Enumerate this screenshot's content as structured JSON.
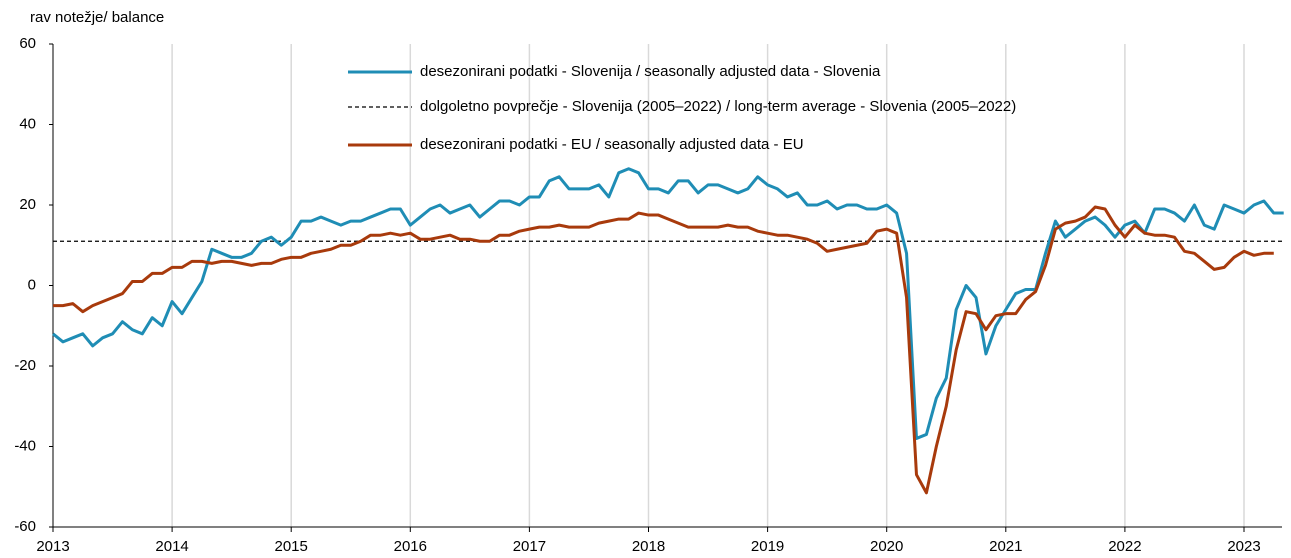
{
  "chart_data": {
    "type": "line",
    "y_axis_label": "rav notežje/ balance",
    "categories": [
      "2013",
      null,
      null,
      null,
      null,
      null,
      null,
      null,
      null,
      null,
      null,
      null,
      "2014",
      null,
      null,
      null,
      null,
      null,
      null,
      null,
      null,
      null,
      null,
      null,
      "2015",
      null,
      null,
      null,
      null,
      null,
      null,
      null,
      null,
      null,
      null,
      null,
      "2016",
      null,
      null,
      null,
      null,
      null,
      null,
      null,
      null,
      null,
      null,
      null,
      "2017",
      null,
      null,
      null,
      null,
      null,
      null,
      null,
      null,
      null,
      null,
      null,
      "2018",
      null,
      null,
      null,
      null,
      null,
      null,
      null,
      null,
      null,
      null,
      null,
      "2019",
      null,
      null,
      null,
      null,
      null,
      null,
      null,
      null,
      null,
      null,
      null,
      "2020",
      null,
      null,
      null,
      null,
      null,
      null,
      null,
      null,
      null,
      null,
      null,
      "2021",
      null,
      null,
      null,
      null,
      null,
      null,
      null,
      null,
      null,
      null,
      null,
      "2022",
      null,
      null,
      null,
      null,
      null,
      null,
      null,
      null,
      null,
      null,
      null,
      "2023",
      null,
      null,
      null,
      null
    ],
    "series": [
      {
        "name": "desezonirani podatki - Slovenija / seasonally adjusted data - Slovenia",
        "color": "#1f8db5",
        "values": [
          -12,
          -14,
          -13,
          -12,
          -15,
          -13,
          -12,
          -9,
          -11,
          -12,
          -8,
          -10,
          -4,
          -7,
          -3,
          1,
          9,
          8,
          7,
          7,
          8,
          11,
          12,
          10,
          12,
          16,
          16,
          17,
          16,
          15,
          16,
          16,
          17,
          18,
          19,
          19,
          15,
          17,
          19,
          20,
          18,
          19,
          20,
          17,
          19,
          21,
          21,
          20,
          22,
          22,
          26,
          27,
          24,
          24,
          24,
          25,
          22,
          28,
          29,
          28,
          24,
          24,
          23,
          26,
          26,
          23,
          25,
          25,
          24,
          23,
          24,
          27,
          25,
          24,
          22,
          23,
          20,
          20,
          21,
          19,
          20,
          20,
          19,
          19,
          20,
          18,
          8,
          -38,
          -37,
          -28,
          -23,
          -6,
          0,
          -3,
          -17,
          -10,
          -6,
          -2,
          -1,
          -1,
          8,
          16,
          12,
          14,
          16,
          17,
          15,
          12,
          15,
          16,
          13,
          19,
          19,
          18,
          16,
          20,
          15,
          14,
          20,
          19,
          18,
          20,
          21,
          18,
          18
        ]
      },
      {
        "name": "desezonirani podatki - EU / seasonally adjusted data - EU",
        "color": "#a83a0c",
        "values": [
          -5,
          -5,
          -4.5,
          -6.5,
          -5,
          -4,
          -3,
          -2,
          1,
          1,
          3,
          3,
          4.5,
          4.5,
          6,
          6,
          5.5,
          6,
          6,
          5.5,
          5,
          5.5,
          5.5,
          6.5,
          7,
          7,
          8,
          8.5,
          9,
          10,
          10,
          11,
          12.5,
          12.5,
          13,
          12.5,
          13,
          11.5,
          11.5,
          12,
          12.5,
          11.5,
          11.5,
          11,
          11,
          12.5,
          12.5,
          13.5,
          14,
          14.5,
          14.5,
          15,
          14.5,
          14.5,
          14.5,
          15.5,
          16,
          16.5,
          16.5,
          18,
          17.5,
          17.5,
          16.5,
          15.5,
          14.5,
          14.5,
          14.5,
          14.5,
          15,
          14.5,
          14.5,
          13.5,
          13,
          12.5,
          12.5,
          12,
          11.5,
          10.5,
          8.5,
          9,
          9.5,
          10,
          10.5,
          13.5,
          14,
          13,
          -3,
          -47,
          -51.5,
          -40,
          -30,
          -16,
          -6.5,
          -7,
          -11,
          -7.5,
          -7,
          -7,
          -3.5,
          -1.5,
          5,
          14,
          15.5,
          16,
          17,
          19.5,
          19,
          15,
          12,
          15,
          13,
          12.5,
          12.5,
          12,
          8.5,
          8,
          6,
          4,
          4.5,
          7,
          8.5,
          7.5,
          8,
          8,
          null
        ]
      }
    ],
    "reference_line": {
      "name": "dolgoletno povprečje - Slovenija (2005–2022) / long-term average - Slovenia (2005–2022)",
      "value": 11,
      "color": "#000000",
      "dashed": true
    },
    "ylim": [
      -60,
      60
    ],
    "yticks": [
      60,
      40,
      20,
      0,
      -20,
      -40,
      -60
    ],
    "x_grid": true
  }
}
